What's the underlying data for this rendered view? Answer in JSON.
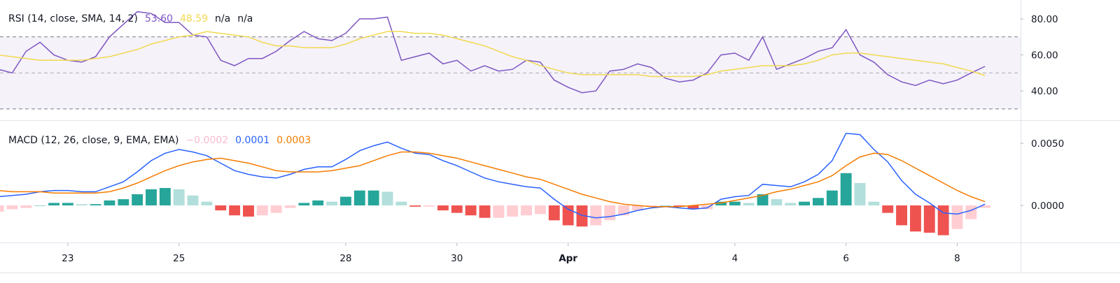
{
  "chart_data": [
    {
      "type": "line",
      "title": "RSI (14, close, SMA, 14, 2)",
      "x": [
        -1.25,
        -1,
        -0.75,
        -0.5,
        -0.25,
        0,
        0.25,
        0.5,
        0.75,
        1,
        1.25,
        1.5,
        1.75,
        2,
        2.25,
        2.5,
        2.75,
        3,
        3.25,
        3.5,
        3.75,
        4,
        4.25,
        4.5,
        4.75,
        5,
        5.25,
        5.5,
        5.75,
        6,
        6.25,
        6.5,
        6.75,
        7,
        7.25,
        7.5,
        7.75,
        8,
        8.25,
        8.5,
        8.75,
        9,
        9.25,
        9.5,
        9.75,
        10,
        10.25,
        10.5,
        10.75,
        11,
        11.25,
        11.5,
        11.75,
        12,
        12.25,
        12.5,
        12.75,
        13,
        13.25,
        13.5,
        13.75,
        14,
        14.25,
        14.5,
        14.75,
        15,
        15.25,
        15.5,
        15.75,
        16,
        16.25,
        16.5
      ],
      "xlim": [
        -1.22,
        17.14
      ],
      "ylim": [
        24.5,
        90.5
      ],
      "yticks": [
        {
          "value": 40,
          "label": "40.00"
        },
        {
          "value": 60,
          "label": "60.00"
        },
        {
          "value": 80,
          "label": "80.00"
        }
      ],
      "hlines": [
        70,
        50,
        30
      ],
      "band_color": "#7e57c2",
      "series": [
        {
          "color": "#7e57c2",
          "legend_label": "53.60",
          "values": [
            52,
            50,
            62,
            67,
            60,
            57,
            56,
            59,
            70,
            77,
            84,
            83,
            78,
            78,
            71,
            70,
            57,
            54,
            58,
            58,
            62,
            68,
            73,
            69,
            68,
            72,
            80,
            80,
            81,
            57,
            59,
            61,
            55,
            57,
            51,
            54,
            51,
            52,
            57,
            56,
            46,
            42,
            39,
            40,
            51,
            52,
            55,
            53,
            47,
            45,
            46,
            50,
            60,
            61,
            57,
            70,
            52,
            55,
            58,
            62,
            64,
            74,
            60,
            56,
            49,
            45,
            43,
            46,
            44,
            46,
            50,
            53.6
          ]
        },
        {
          "color": "#f2d94e",
          "legend_label": "48.59",
          "values": [
            60,
            59,
            58,
            57,
            57,
            57,
            57,
            58,
            59,
            61,
            63,
            66,
            68,
            70,
            71,
            73,
            72,
            71,
            70,
            67,
            65,
            65,
            64,
            64,
            64,
            66,
            69,
            71,
            73,
            73,
            72,
            72,
            71,
            69,
            67,
            65,
            62,
            59,
            57,
            54,
            52,
            50,
            49,
            49,
            49,
            49,
            49,
            48,
            48,
            48,
            48,
            49,
            51,
            52,
            53,
            54,
            54,
            54,
            55,
            57,
            60,
            61,
            61,
            60,
            59,
            58,
            57,
            56,
            55,
            53,
            51,
            48.59
          ]
        }
      ],
      "extra_labels": [
        "n/a",
        "n/a"
      ]
    },
    {
      "type": "macd",
      "title": "MACD (12, 26, close, 9, EMA, EMA)",
      "x": [
        -1.25,
        -1,
        -0.75,
        -0.5,
        -0.25,
        0,
        0.25,
        0.5,
        0.75,
        1,
        1.25,
        1.5,
        1.75,
        2,
        2.25,
        2.5,
        2.75,
        3,
        3.25,
        3.5,
        3.75,
        4,
        4.25,
        4.5,
        4.75,
        5,
        5.25,
        5.5,
        5.75,
        6,
        6.25,
        6.5,
        6.75,
        7,
        7.25,
        7.5,
        7.75,
        8,
        8.25,
        8.5,
        8.75,
        9,
        9.25,
        9.5,
        9.75,
        10,
        10.25,
        10.5,
        10.75,
        11,
        11.25,
        11.5,
        11.75,
        12,
        12.25,
        12.5,
        12.75,
        13,
        13.25,
        13.5,
        13.75,
        14,
        14.25,
        14.5,
        14.75,
        15,
        15.25,
        15.5,
        15.75,
        16,
        16.25,
        16.5
      ],
      "xlim": [
        -1.22,
        17.14
      ],
      "xticks": [
        {
          "value": 0,
          "label": "23"
        },
        {
          "value": 2,
          "label": "25"
        },
        {
          "value": 5,
          "label": "28"
        },
        {
          "value": 7,
          "label": "30"
        },
        {
          "value": 9,
          "label": "Apr"
        },
        {
          "value": 12,
          "label": "4"
        },
        {
          "value": 14,
          "label": "6"
        },
        {
          "value": 16,
          "label": "8"
        }
      ],
      "ylim": [
        -0.00287,
        0.00669
      ],
      "yticks": [
        {
          "value": 0,
          "label": "0.0000"
        },
        {
          "value": 0.005,
          "label": "0.0050"
        }
      ],
      "histogram": {
        "legend_label": "−0.0002",
        "legend_color": "#f8bbd0",
        "colors": {
          "rising_above": "#26a69a",
          "falling_above": "#b2dfdb",
          "falling_below": "#ef5350",
          "rising_below": "#ffcdd2"
        },
        "values": [
          -0.0005,
          -0.0003,
          -0.0002,
          0,
          0.0002,
          0.0002,
          0.0001,
          0.0001,
          0.0004,
          0.0005,
          0.0009,
          0.0013,
          0.0014,
          0.0013,
          0.0008,
          0.0003,
          -0.0004,
          -0.0008,
          -0.0009,
          -0.0008,
          -0.0006,
          -0.0002,
          0.0002,
          0.0004,
          0.0003,
          0.0007,
          0.0012,
          0.0012,
          0.0011,
          0.0003,
          -0.0001,
          -0.0001,
          -0.0004,
          -0.0006,
          -0.0008,
          -0.001,
          -0.001,
          -0.0009,
          -0.0008,
          -0.0007,
          -0.0012,
          -0.0016,
          -0.0017,
          -0.0016,
          -0.0012,
          -0.0008,
          -0.0004,
          -0.0001,
          0,
          -0.0001,
          -0.0003,
          -0.0003,
          0.0003,
          0.0003,
          0.0002,
          0.0009,
          0.0005,
          0.0002,
          0.0003,
          0.0006,
          0.0012,
          0.0026,
          0.0018,
          0.0003,
          -0.0006,
          -0.0016,
          -0.0021,
          -0.0022,
          -0.0024,
          -0.0019,
          -0.0011,
          -0.0002
        ]
      },
      "series": [
        {
          "color": "#2962ff",
          "legend_label": "0.0001",
          "values": [
            0.0007,
            0.0008,
            0.0009,
            0.0011,
            0.0012,
            0.0012,
            0.0011,
            0.0011,
            0.0015,
            0.0019,
            0.0027,
            0.0036,
            0.0042,
            0.0045,
            0.0043,
            0.004,
            0.0034,
            0.0028,
            0.0025,
            0.0023,
            0.0022,
            0.0025,
            0.0029,
            0.0031,
            0.0031,
            0.0037,
            0.0044,
            0.0048,
            0.0051,
            0.0046,
            0.0042,
            0.0041,
            0.0036,
            0.0032,
            0.0027,
            0.0022,
            0.0019,
            0.0017,
            0.0015,
            0.0014,
            0.0005,
            -0.0003,
            -0.0008,
            -0.001,
            -0.0009,
            -0.0007,
            -0.0004,
            -0.0002,
            -0.0001,
            -0.0002,
            -0.0003,
            -0.0002,
            0.0005,
            0.0007,
            0.0008,
            0.0017,
            0.0016,
            0.0015,
            0.0019,
            0.0025,
            0.0036,
            0.0058,
            0.0057,
            0.0045,
            0.0035,
            0.002,
            0.0009,
            0.0002,
            -0.0006,
            -0.0007,
            -0.0004,
            0.0001
          ]
        },
        {
          "color": "#f57c00",
          "legend_label": "0.0003",
          "values": [
            0.0012,
            0.0011,
            0.0011,
            0.0011,
            0.001,
            0.001,
            0.001,
            0.001,
            0.0011,
            0.0014,
            0.0018,
            0.0023,
            0.0028,
            0.0032,
            0.0035,
            0.0037,
            0.0038,
            0.0036,
            0.0034,
            0.0031,
            0.0028,
            0.0027,
            0.0027,
            0.0027,
            0.0028,
            0.003,
            0.0032,
            0.0036,
            0.004,
            0.0043,
            0.0043,
            0.0042,
            0.004,
            0.0038,
            0.0035,
            0.0032,
            0.0029,
            0.0026,
            0.0023,
            0.0021,
            0.0017,
            0.0013,
            0.0009,
            0.0006,
            0.0003,
            0.0001,
            0,
            -0.0001,
            -0.0001,
            -0.0001,
            0,
            0.0001,
            0.0002,
            0.0004,
            0.0006,
            0.0008,
            0.0011,
            0.0013,
            0.0016,
            0.0019,
            0.0024,
            0.0032,
            0.0039,
            0.0042,
            0.0041,
            0.0036,
            0.003,
            0.0024,
            0.0018,
            0.0012,
            0.0007,
            0.0003
          ]
        }
      ]
    }
  ]
}
